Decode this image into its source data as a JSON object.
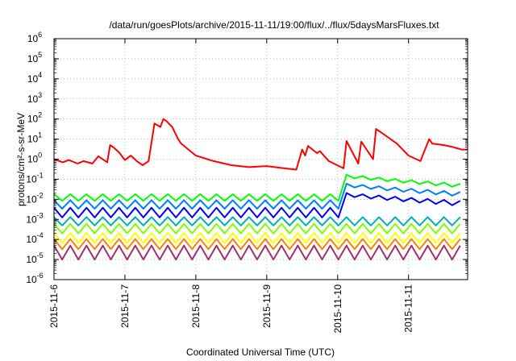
{
  "chart_data": {
    "type": "line",
    "title": "/data/run/goesPlots/archive/2015-11-11/19:00/flux/../flux/5daysMarsFluxes.txt",
    "xlabel": "Coordinated Universal Time (UTC)",
    "ylabel": "protons/cm²-s-sr-MeV",
    "scale": "log",
    "x_range": [
      "2015-11-06 00:00",
      "2015-11-11 20:00"
    ],
    "ylim": [
      1e-06,
      1000000.0
    ],
    "grid": true,
    "x_ticks": [
      "2015-11-6",
      "2015-11-7",
      "2015-11-8",
      "2015-11-9",
      "2015-11-10",
      "2015-11-11"
    ],
    "y_ticks": [
      {
        "base": "10",
        "exp": "-6"
      },
      {
        "base": "10",
        "exp": "-5"
      },
      {
        "base": "10",
        "exp": "-4"
      },
      {
        "base": "10",
        "exp": "-3"
      },
      {
        "base": "10",
        "exp": "-2"
      },
      {
        "base": "10",
        "exp": "-1"
      },
      {
        "base": "10",
        "exp": "0"
      },
      {
        "base": "10",
        "exp": "1"
      },
      {
        "base": "10",
        "exp": "2"
      },
      {
        "base": "10",
        "exp": "3"
      },
      {
        "base": "10",
        "exp": "4"
      },
      {
        "base": "10",
        "exp": "5"
      },
      {
        "base": "10",
        "exp": "6"
      }
    ],
    "series": [
      {
        "color": "#ff0000",
        "x": [
          "2015-11-06 00:00",
          "2015-11-06 03:00",
          "2015-11-06 05:00",
          "2015-11-06 08:00",
          "2015-11-06 10:00",
          "2015-11-06 13:00",
          "2015-11-06 15:00",
          "2015-11-06 18:00",
          "2015-11-06 19:00",
          "2015-11-06 20:00",
          "2015-11-06 22:00",
          "2015-11-07 00:00",
          "2015-11-07 02:00",
          "2015-11-07 04:00",
          "2015-11-07 06:00",
          "2015-11-07 08:00",
          "2015-11-07 10:00",
          "2015-11-07 12:00",
          "2015-11-07 13:00",
          "2015-11-07 14:00",
          "2015-11-07 16:00",
          "2015-11-07 18:00",
          "2015-11-07 19:00",
          "2015-11-08 00:00",
          "2015-11-08 06:00",
          "2015-11-08 12:00",
          "2015-11-08 18:00",
          "2015-11-09 00:00",
          "2015-11-09 06:00",
          "2015-11-09 10:00",
          "2015-11-09 12:00",
          "2015-11-09 13:00",
          "2015-11-09 14:00",
          "2015-11-09 17:00",
          "2015-11-09 18:00",
          "2015-11-09 21:00",
          "2015-11-10 02:00",
          "2015-11-10 03:00",
          "2015-11-10 07:00",
          "2015-11-10 08:00",
          "2015-11-10 12:00",
          "2015-11-10 13:00",
          "2015-11-10 15:00",
          "2015-11-10 20:00",
          "2015-11-11 00:00",
          "2015-11-11 04:00",
          "2015-11-11 07:00",
          "2015-11-11 08:00",
          "2015-11-11 12:00",
          "2015-11-11 15:00",
          "2015-11-11 18:00",
          "2015-11-11 20:00"
        ],
        "values": [
          1.0,
          0.7,
          0.9,
          0.6,
          0.8,
          0.6,
          1.4,
          0.7,
          5.0,
          4.0,
          2.2,
          0.9,
          1.5,
          0.8,
          0.5,
          0.8,
          60,
          40,
          100,
          80,
          40,
          10,
          6,
          1.5,
          0.8,
          0.5,
          0.4,
          0.45,
          0.35,
          0.3,
          3.0,
          1.5,
          4.5,
          2.0,
          2.5,
          0.8,
          0.35,
          8.0,
          0.6,
          7.5,
          1.0,
          32,
          20,
          6,
          1.5,
          0.8,
          10,
          6,
          5,
          4,
          3,
          3
        ]
      },
      {
        "color": "#00ff00",
        "base": 0.012,
        "amp": 0.006,
        "boost": 0.16
      },
      {
        "color": "#0080ff",
        "base": 0.0055,
        "amp": 0.0035,
        "boost": 0.055
      },
      {
        "color": "#0000ff",
        "base": 0.0022,
        "amp": 0.0016,
        "boost": 0.018
      },
      {
        "color": "#00b0b0",
        "base": 0.0008,
        "amp": 0.0005,
        "boost": 0.0
      },
      {
        "color": "#80ff00",
        "base": 0.00035,
        "amp": 0.00025,
        "boost": 0.0
      },
      {
        "color": "#ffff00",
        "base": 0.00012,
        "amp": 9e-05,
        "boost": 0.0
      },
      {
        "color": "#ff8000",
        "base": 6e-05,
        "amp": 4.5e-05,
        "boost": 0.0
      },
      {
        "color": "#a03070",
        "base": 2.5e-05,
        "amp": 2.5e-05,
        "boost": 0.0
      }
    ]
  }
}
